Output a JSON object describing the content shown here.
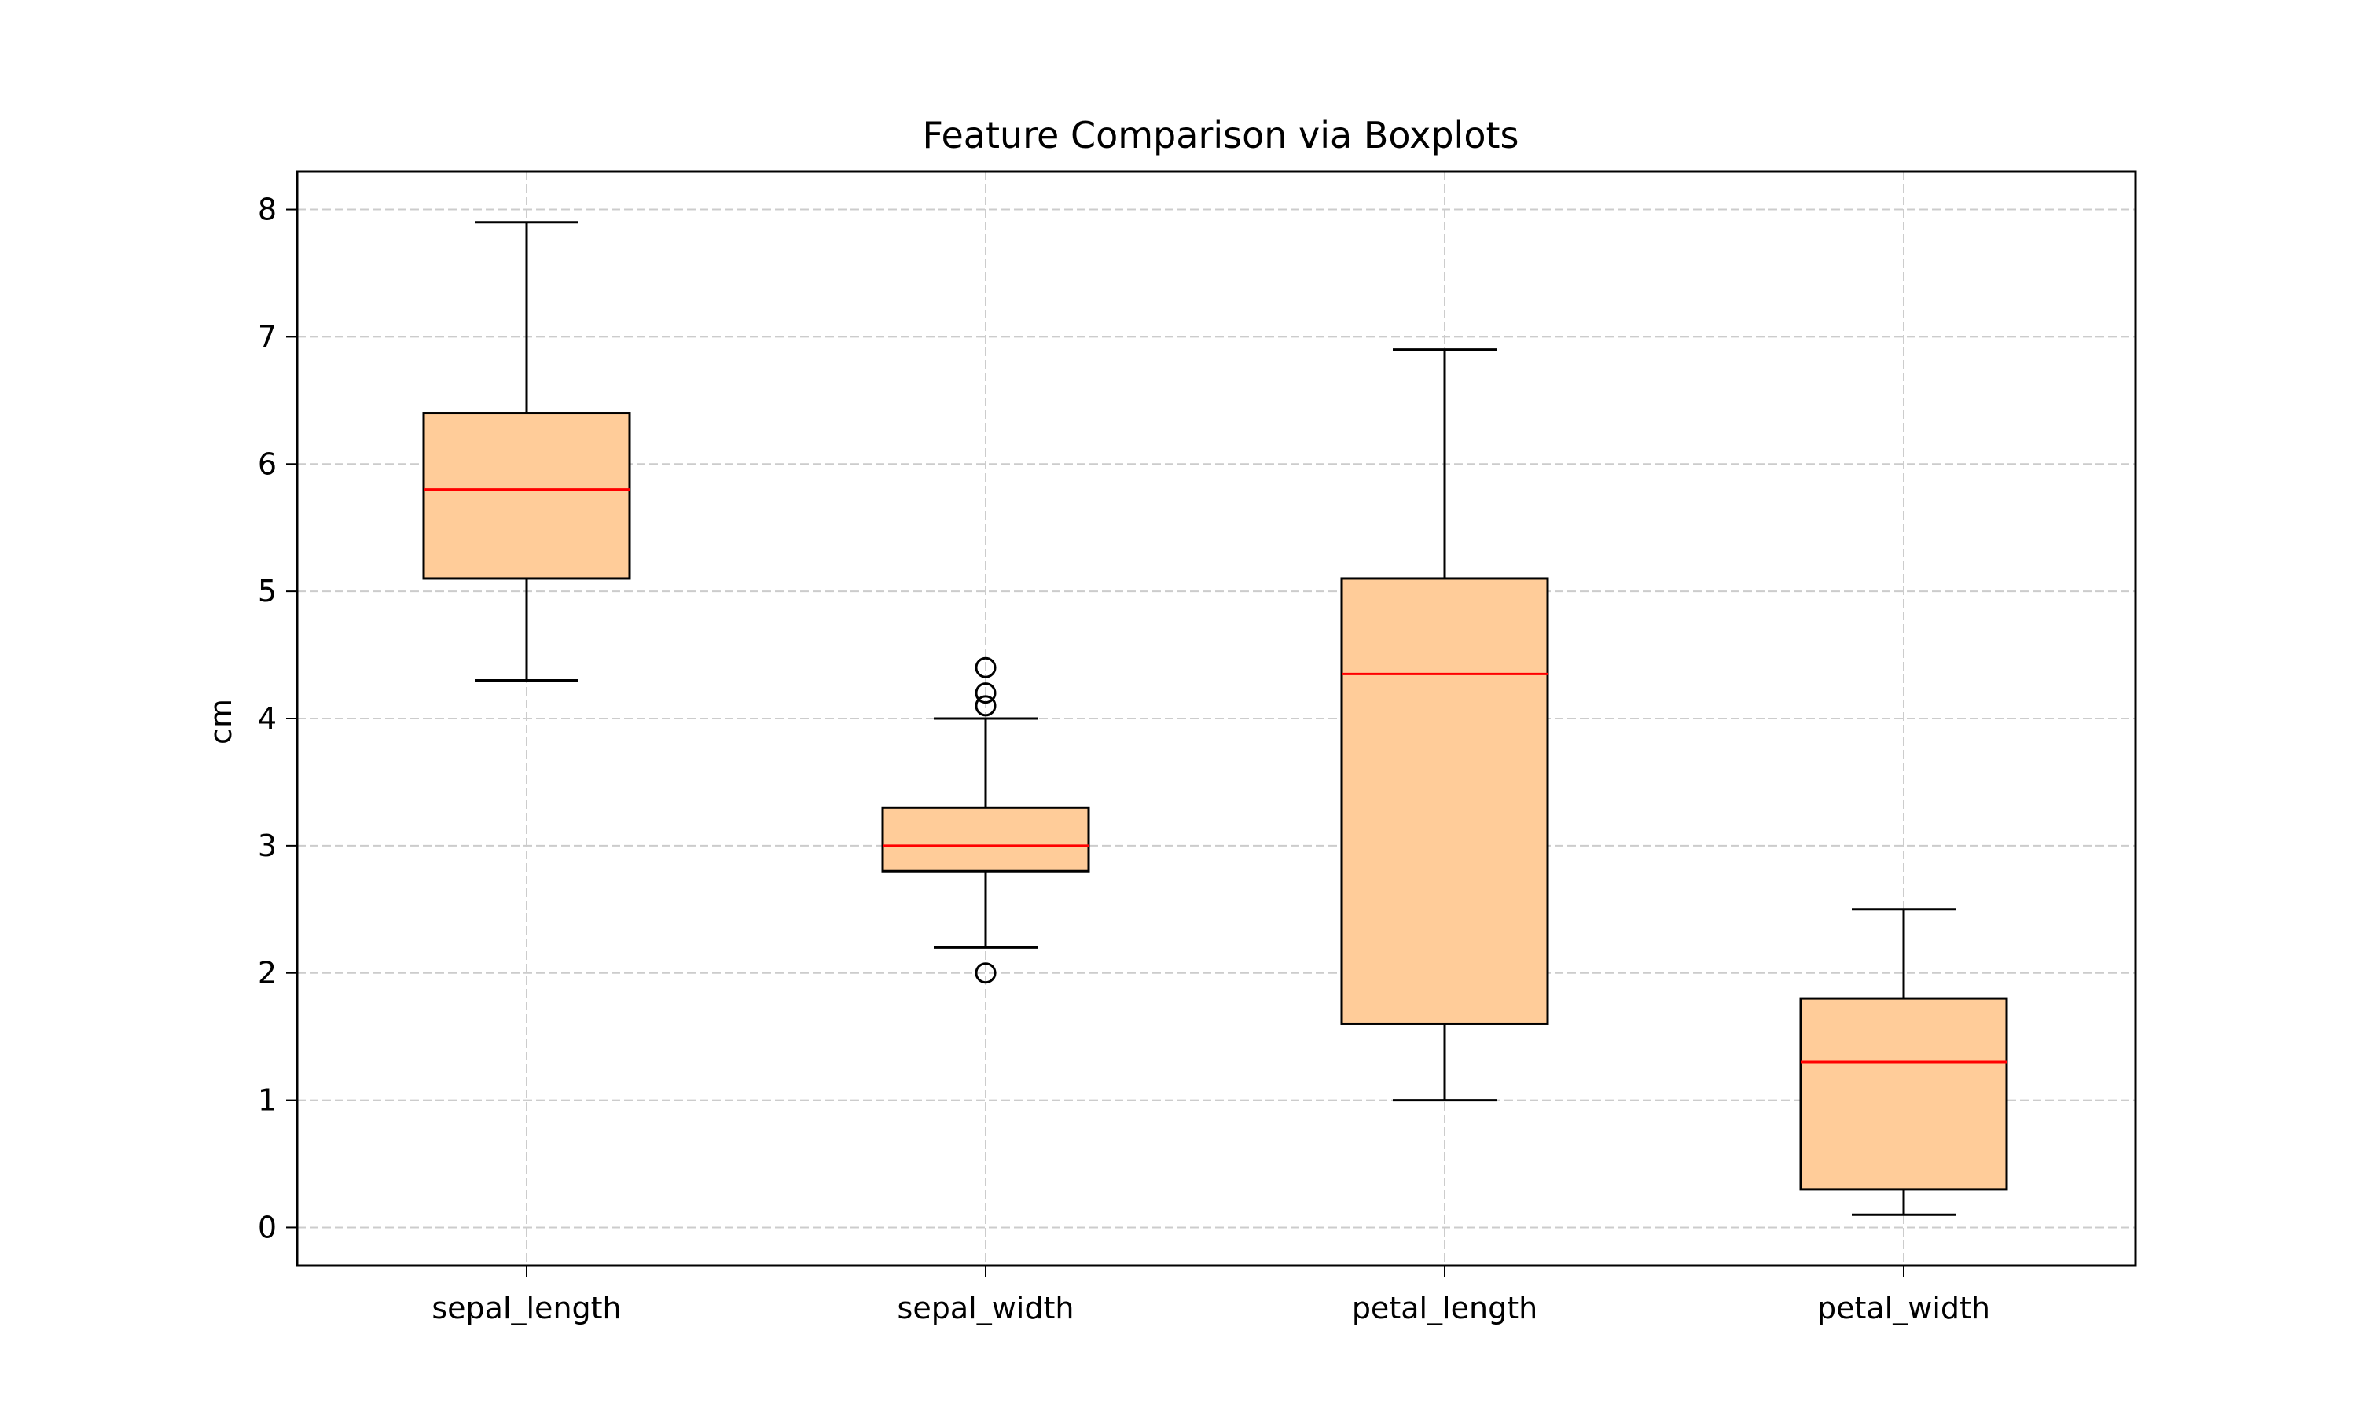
{
  "chart_data": {
    "type": "boxplot",
    "title": "Feature Comparison via Boxplots",
    "xlabel": "",
    "ylabel": "cm",
    "ylim": [
      -0.3,
      8.3
    ],
    "yticks": [
      0,
      1,
      2,
      3,
      4,
      5,
      6,
      7,
      8
    ],
    "grid": true,
    "categories": [
      "sepal_length",
      "sepal_width",
      "petal_length",
      "petal_width"
    ],
    "boxes": [
      {
        "category": "sepal_length",
        "whisker_low": 4.3,
        "q1": 5.1,
        "median": 5.8,
        "q3": 6.4,
        "whisker_high": 7.9,
        "outliers": []
      },
      {
        "category": "sepal_width",
        "whisker_low": 2.2,
        "q1": 2.8,
        "median": 3.0,
        "q3": 3.3,
        "whisker_high": 4.0,
        "outliers": [
          2.0,
          4.1,
          4.2,
          4.4
        ]
      },
      {
        "category": "petal_length",
        "whisker_low": 1.0,
        "q1": 1.6,
        "median": 4.35,
        "q3": 5.1,
        "whisker_high": 6.9,
        "outliers": []
      },
      {
        "category": "petal_width",
        "whisker_low": 0.1,
        "q1": 0.3,
        "median": 1.3,
        "q3": 1.8,
        "whisker_high": 2.5,
        "outliers": []
      }
    ],
    "colors": {
      "box_fill": "#ffcc99",
      "median_line": "#ff0000",
      "grid": "#cccccc"
    }
  }
}
